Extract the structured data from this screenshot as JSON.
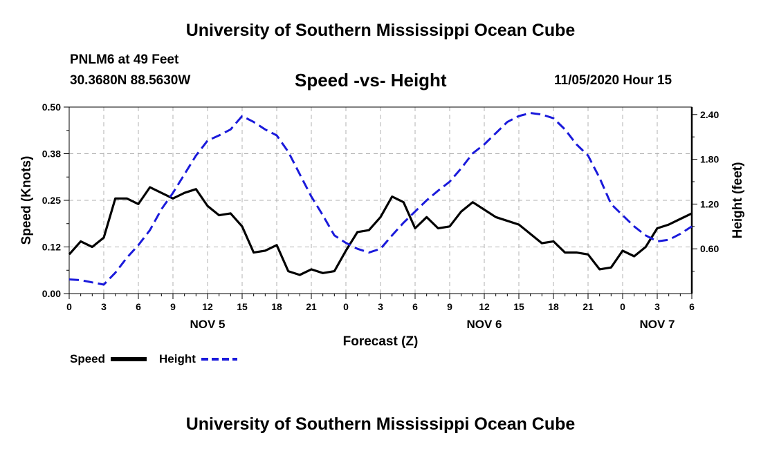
{
  "header": {
    "title": "University of Southern Mississippi Ocean Cube",
    "station": "PNLM6 at 49 Feet",
    "coords": "30.3680N 88.5630W",
    "datetime": "11/05/2020 Hour 15"
  },
  "footer": {
    "title": "University of Southern Mississippi Ocean Cube"
  },
  "chart_data": {
    "type": "line",
    "title": "Speed -vs- Height",
    "xlabel": "Forecast (Z)",
    "ylabel": "Speed (Knots)",
    "y2label": "Height (feet)",
    "x_hours": [
      0,
      1,
      2,
      3,
      4,
      5,
      6,
      7,
      8,
      9,
      10,
      11,
      12,
      13,
      14,
      15,
      16,
      17,
      18,
      19,
      20,
      21,
      22,
      23,
      24,
      25,
      26,
      27,
      28,
      29,
      30,
      31,
      32,
      33,
      34,
      35,
      36,
      37,
      38,
      39,
      40,
      41,
      42,
      43,
      44,
      45,
      46,
      47,
      48,
      49,
      50,
      51,
      52,
      53,
      54
    ],
    "x_tick_labels": [
      "0",
      "3",
      "6",
      "9",
      "12",
      "15",
      "18",
      "21",
      "0",
      "3",
      "6",
      "9",
      "12",
      "15",
      "18",
      "21",
      "0",
      "3",
      "6"
    ],
    "day_labels": [
      {
        "label": "NOV 5",
        "hour": 12
      },
      {
        "label": "NOV 6",
        "hour": 36
      },
      {
        "label": "NOV 7",
        "hour": 51
      }
    ],
    "xlim": [
      0,
      54
    ],
    "ylim": [
      0,
      0.5
    ],
    "y_ticks": [
      0,
      0.125,
      0.25,
      0.375,
      0.5
    ],
    "y_tick_labels": [
      "0.00",
      "0.12",
      "0.25",
      "0.38",
      "0.50"
    ],
    "y2lim": [
      0,
      2.5
    ],
    "y2_ticks": [
      0.6,
      1.2,
      1.8,
      2.4
    ],
    "y2_tick_labels": [
      "0.60",
      "1.20",
      "1.80",
      "2.40"
    ],
    "grid": true,
    "legend_position": "bottom-left",
    "series": [
      {
        "name": "Speed",
        "axis": "left",
        "color": "#000000",
        "dash": "solid",
        "values": [
          0.105,
          0.14,
          0.125,
          0.15,
          0.255,
          0.255,
          0.24,
          0.285,
          0.27,
          0.255,
          0.27,
          0.28,
          0.235,
          0.21,
          0.215,
          0.18,
          0.11,
          0.115,
          0.13,
          0.06,
          0.05,
          0.065,
          0.055,
          0.06,
          0.115,
          0.165,
          0.17,
          0.205,
          0.26,
          0.245,
          0.175,
          0.205,
          0.175,
          0.18,
          0.22,
          0.245,
          0.225,
          0.205,
          0.195,
          0.185,
          0.16,
          0.135,
          0.14,
          0.11,
          0.11,
          0.105,
          0.065,
          0.07,
          0.115,
          0.1,
          0.125,
          0.175,
          0.185,
          0.2,
          0.215
        ]
      },
      {
        "name": "Height",
        "axis": "right",
        "color": "#1a1adb",
        "dash": "dashed",
        "values": [
          0.19,
          0.18,
          0.15,
          0.12,
          0.28,
          0.48,
          0.65,
          0.85,
          1.13,
          1.35,
          1.6,
          1.85,
          2.05,
          2.12,
          2.2,
          2.38,
          2.3,
          2.2,
          2.12,
          1.9,
          1.6,
          1.3,
          1.05,
          0.78,
          0.68,
          0.6,
          0.55,
          0.6,
          0.78,
          0.95,
          1.1,
          1.25,
          1.38,
          1.5,
          1.68,
          1.88,
          2.0,
          2.15,
          2.3,
          2.38,
          2.42,
          2.4,
          2.35,
          2.2,
          2.0,
          1.85,
          1.55,
          1.2,
          1.05,
          0.9,
          0.78,
          0.7,
          0.72,
          0.8,
          0.9
        ]
      }
    ]
  }
}
